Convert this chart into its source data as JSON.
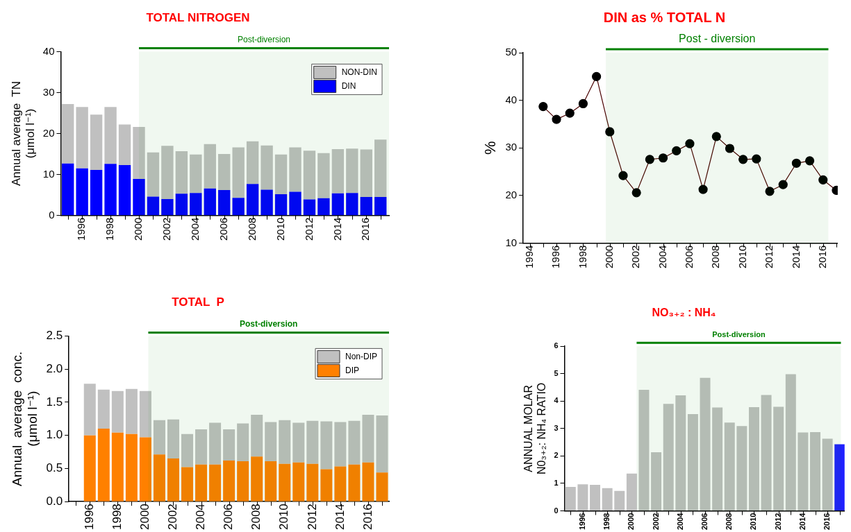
{
  "chart_data": [
    {
      "type": "bar",
      "title": "TOTAL NITROGEN",
      "ylabel": "Annual average  TN\n(μmol l⁻¹)",
      "stacked": true,
      "legend": "top right",
      "grid": false,
      "x": [
        1995,
        1996,
        1997,
        1998,
        1999,
        2000,
        2001,
        2002,
        2003,
        2004,
        2005,
        2006,
        2007,
        2008,
        2009,
        2010,
        2011,
        2012,
        2013,
        2014,
        2015,
        2016,
        2017
      ],
      "xlim": [
        1994.5,
        2017.6
      ],
      "xticks": [
        {
          "value": 1995,
          "label": null
        },
        1996,
        {
          "value": 1997,
          "label": null
        },
        1998,
        {
          "value": 1999,
          "label": null
        },
        2000,
        {
          "value": 2001,
          "label": null
        },
        2002,
        {
          "value": 2003,
          "label": null
        },
        2004,
        {
          "value": 2005,
          "label": null
        },
        2006,
        {
          "value": 2007,
          "label": null
        },
        2008,
        {
          "value": 2009,
          "label": null
        },
        2010,
        {
          "value": 2011,
          "label": null
        },
        2012,
        {
          "value": 2013,
          "label": null
        },
        2014,
        {
          "value": 2015,
          "label": null
        },
        2016,
        {
          "value": 2017,
          "label": null
        }
      ],
      "ylim": [
        0,
        40
      ],
      "yticks": [
        0,
        10,
        20,
        30,
        40
      ],
      "bands": [
        {
          "axis": "x",
          "from": 2000,
          "to": 2017.6,
          "label": "Post-diversion",
          "color": "#008000"
        }
      ],
      "series": [
        {
          "name": "DIN",
          "color": "#0000ff",
          "values": [
            12.7,
            11.5,
            11.1,
            12.6,
            12.3,
            8.9,
            4.6,
            4.0,
            5.3,
            5.5,
            6.6,
            6.2,
            4.3,
            7.7,
            6.3,
            5.2,
            5.8,
            3.9,
            4.2,
            5.4,
            5.5,
            4.5,
            4.5
          ]
        },
        {
          "name": "NON-DIN",
          "color": "#c0c0c0",
          "values": [
            14.5,
            15.0,
            13.5,
            13.9,
            9.9,
            12.7,
            10.8,
            13.0,
            10.4,
            9.4,
            10.8,
            8.8,
            12.3,
            10.4,
            10.8,
            9.7,
            10.8,
            11.9,
            11.0,
            10.8,
            10.8,
            11.6,
            14.0
          ]
        }
      ]
    },
    {
      "type": "line",
      "title": "DIN as % TOTAL N",
      "ylabel": "%",
      "grid": false,
      "marker": "circle",
      "line_style": "solid",
      "x": [
        1995,
        1996,
        1997,
        1998,
        1999,
        2000,
        2001,
        2002,
        2003,
        2004,
        2005,
        2006,
        2007,
        2008,
        2009,
        2010,
        2011,
        2012,
        2013,
        2014,
        2015,
        2016,
        2017
      ],
      "xlim": [
        1993.5,
        2017.1
      ],
      "xticks": [
        1994,
        {
          "value": 1995,
          "label": null
        },
        1996,
        {
          "value": 1997,
          "label": null
        },
        1998,
        {
          "value": 1999,
          "label": null
        },
        2000,
        {
          "value": 2001,
          "label": null
        },
        2002,
        {
          "value": 2003,
          "label": null
        },
        2004,
        {
          "value": 2005,
          "label": null
        },
        2006,
        {
          "value": 2007,
          "label": null
        },
        2008,
        {
          "value": 2009,
          "label": null
        },
        2010,
        {
          "value": 2011,
          "label": null
        },
        2012,
        {
          "value": 2013,
          "label": null
        },
        2014,
        {
          "value": 2015,
          "label": null
        },
        2016,
        {
          "value": 2017,
          "label": null
        }
      ],
      "ylim": [
        10,
        50
      ],
      "yticks": [
        10,
        20,
        30,
        40,
        50
      ],
      "bands": [
        {
          "axis": "x",
          "from": 1999.7,
          "to": 2016.4,
          "label": "Post - diversion",
          "color": "#008000"
        }
      ],
      "series": [
        {
          "color": "#000000",
          "values": [
            38.7,
            36.0,
            37.3,
            39.3,
            45.0,
            33.4,
            24.2,
            20.6,
            27.6,
            27.9,
            29.4,
            30.9,
            21.3,
            32.4,
            29.9,
            27.6,
            27.7,
            20.9,
            22.3,
            26.8,
            27.3,
            23.3,
            21.1
          ]
        }
      ]
    },
    {
      "type": "bar",
      "title": "TOTAL  P",
      "ylabel": "Annual  average  conc.\n(μmol l⁻¹)",
      "stacked": true,
      "legend": "top right",
      "grid": false,
      "x": [
        1996,
        1997,
        1998,
        1999,
        2000,
        2001,
        2002,
        2003,
        2004,
        2005,
        2006,
        2007,
        2008,
        2009,
        2010,
        2011,
        2012,
        2013,
        2014,
        2015,
        2016,
        2017
      ],
      "xlim": [
        1994.5,
        2017.5
      ],
      "xticks": [
        {
          "value": 1995,
          "label": null
        },
        1996,
        {
          "value": 1997,
          "label": null
        },
        1998,
        {
          "value": 1999,
          "label": null
        },
        2000,
        {
          "value": 2001,
          "label": null
        },
        2002,
        {
          "value": 2003,
          "label": null
        },
        2004,
        {
          "value": 2005,
          "label": null
        },
        2006,
        {
          "value": 2007,
          "label": null
        },
        2008,
        {
          "value": 2009,
          "label": null
        },
        2010,
        {
          "value": 2011,
          "label": null
        },
        2012,
        {
          "value": 2013,
          "label": null
        },
        2014,
        {
          "value": 2015,
          "label": null
        },
        2016,
        {
          "value": 2017,
          "label": null
        }
      ],
      "ylim": [
        0,
        2.5
      ],
      "yticks": [
        {
          "value": 0,
          "label": "0.0"
        },
        {
          "value": 0.5,
          "label": "0.5"
        },
        {
          "value": 1,
          "label": "1.0"
        },
        {
          "value": 1.5,
          "label": "1.5"
        },
        {
          "value": 2,
          "label": "2.0"
        },
        {
          "value": 2.5,
          "label": "2.5"
        }
      ],
      "bands": [
        {
          "axis": "x",
          "from": 2000.2,
          "to": 2017.5,
          "label": "Post-diversion",
          "color": "#008000"
        }
      ],
      "series": [
        {
          "name": "DIP",
          "color": "#ff8000",
          "values": [
            1.0,
            1.1,
            1.04,
            1.02,
            0.97,
            0.71,
            0.65,
            0.52,
            0.56,
            0.56,
            0.62,
            0.61,
            0.68,
            0.61,
            0.57,
            0.59,
            0.57,
            0.49,
            0.53,
            0.56,
            0.59,
            0.44
          ]
        },
        {
          "name": "Non-DIP",
          "color": "#c0c0c0",
          "values": [
            0.78,
            0.59,
            0.63,
            0.68,
            0.7,
            0.52,
            0.59,
            0.5,
            0.53,
            0.63,
            0.47,
            0.57,
            0.63,
            0.59,
            0.66,
            0.6,
            0.65,
            0.72,
            0.67,
            0.66,
            0.72,
            0.86
          ]
        }
      ]
    },
    {
      "type": "bar",
      "title": "NO₃₊₂ : NH₄",
      "ylabel": "ANNUAL MOLAR\nN0₃₊₂: NH₄ RATIO",
      "grid": false,
      "x": [
        1995,
        1996,
        1997,
        1998,
        1999,
        2000,
        2001,
        2002,
        2003,
        2004,
        2005,
        2006,
        2007,
        2008,
        2009,
        2010,
        2011,
        2012,
        2013,
        2014,
        2015,
        2016,
        2017
      ],
      "xlim": [
        1994.5,
        2017.4
      ],
      "xticks": [
        {
          "value": 1995,
          "label": null
        },
        1996,
        {
          "value": 1997,
          "label": null
        },
        1998,
        {
          "value": 1999,
          "label": null
        },
        2000,
        {
          "value": 2001,
          "label": null
        },
        2002,
        {
          "value": 2003,
          "label": null
        },
        2004,
        {
          "value": 2005,
          "label": null
        },
        2006,
        {
          "value": 2007,
          "label": null
        },
        2008,
        {
          "value": 2009,
          "label": null
        },
        2010,
        {
          "value": 2011,
          "label": null
        },
        2012,
        {
          "value": 2013,
          "label": null
        },
        2014,
        {
          "value": 2015,
          "label": null
        },
        2016,
        {
          "value": 2017,
          "label": null
        }
      ],
      "ylim": [
        0,
        6
      ],
      "yticks": [
        0,
        1,
        2,
        3,
        4,
        5,
        6
      ],
      "bands": [
        {
          "axis": "x",
          "from": 2000.4,
          "to": 2017.1,
          "label": "Post-diversion",
          "color": "#008000"
        }
      ],
      "values": [
        0.87,
        0.97,
        0.95,
        0.83,
        0.73,
        1.36,
        4.41,
        2.14,
        3.9,
        4.21,
        3.53,
        4.85,
        3.77,
        3.22,
        3.09,
        3.78,
        4.22,
        3.79,
        4.98,
        2.86,
        2.87,
        2.63,
        2.43
      ],
      "colors": [
        "#c0c0c0",
        "#c0c0c0",
        "#c0c0c0",
        "#c0c0c0",
        "#c0c0c0",
        "#c0c0c0",
        "#c0c0c0",
        "#c0c0c0",
        "#c0c0c0",
        "#c0c0c0",
        "#c0c0c0",
        "#c0c0c0",
        "#c0c0c0",
        "#c0c0c0",
        "#c0c0c0",
        "#c0c0c0",
        "#c0c0c0",
        "#c0c0c0",
        "#c0c0c0",
        "#c0c0c0",
        "#c0c0c0",
        "#c0c0c0",
        "#2020ff"
      ]
    }
  ]
}
